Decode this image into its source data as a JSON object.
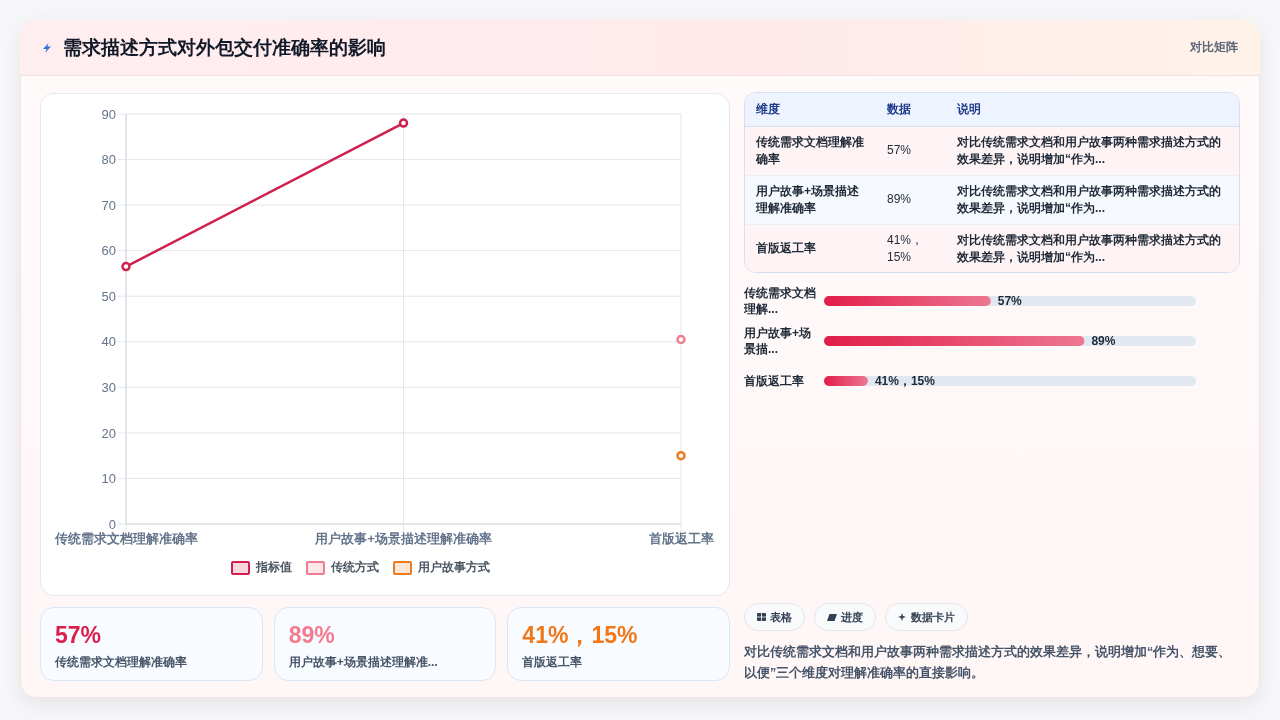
{
  "chart_data": [
    {
      "type": "other",
      "title": "需求描述方式对外包交付准确率的影响",
      "annotations": [
        "对比矩阵"
      ]
    },
    {
      "type": "line",
      "categories": [
        "传统需求文档理解准确率",
        "用户故事+场景描述理解准确率",
        "首版返工率"
      ],
      "series": [
        {
          "name": "指标值",
          "color": "#d0204c",
          "values": [
            56.5,
            88,
            null
          ]
        },
        {
          "name": "传统方式",
          "color": "#f17c90",
          "values": [
            null,
            null,
            40.5
          ]
        },
        {
          "name": "用户故事方式",
          "color": "#ee7a1f",
          "values": [
            null,
            null,
            15
          ]
        }
      ],
      "ylim": [
        0,
        90
      ],
      "yticks": [
        0,
        10,
        20,
        30,
        40,
        50,
        60,
        70,
        80,
        90
      ],
      "grid": true,
      "legend": "bottom",
      "marker": "circle",
      "line_style": "solid"
    },
    {
      "type": "other",
      "annotations": [
        "维度",
        "数据",
        "说明",
        "传统需求文档理解准确率",
        "57%",
        "对比传统需求文档和用户故事两种需求描述方式的效果差异，说明增加“作为...",
        "用户故事+场景描述理解准确率",
        "89%",
        "对比传统需求文档和用户故事两种需求描述方式的效果差异，说明增加“作为...",
        "首版返工率",
        "41%，15%",
        "对比传统需求文档和用户故事两种需求描述方式的效果差异，说明增加“作为..."
      ]
    },
    {
      "type": "bar",
      "orientation": "horizontal",
      "categories": [
        "传统需求文档理解...",
        "用户故事+场景描...",
        "首版返工率"
      ],
      "values": [
        57,
        89,
        15
      ],
      "value_labels": [
        "57%",
        "89%",
        "41%，15%"
      ],
      "color": "#e11d48"
    },
    {
      "type": "other",
      "annotations": [
        "57%",
        "传统需求文档理解准确率",
        "89%",
        "用户故事+场景描述理解准...",
        "41%，15%",
        "首版返工率"
      ],
      "colors": [
        "#dc1f4c",
        "#f47b8d",
        "#f0781a"
      ]
    },
    {
      "type": "other",
      "annotations": [
        "表格",
        "进度",
        "数据卡片",
        "对比传统需求文档和用户故事两种需求描述方式的效果差异，说明增加“作为、想要、以便”三个维度对理解准确率的直接影响。"
      ]
    }
  ]
}
